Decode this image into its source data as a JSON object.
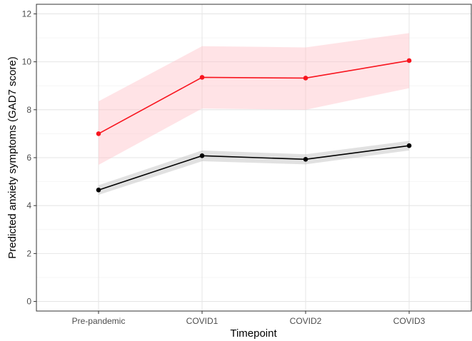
{
  "chart_data": {
    "type": "line",
    "title": "",
    "xlabel": "Timepoint",
    "ylabel": "Predicted anxiety symptoms (GAD7 score)",
    "categories": [
      "Pre-pandemic",
      "COVID1",
      "COVID2",
      "COVID3"
    ],
    "ylim": [
      -0.4,
      12.4
    ],
    "yticks": [
      0,
      2,
      4,
      6,
      8,
      10,
      12
    ],
    "ytick_labels": [
      "0",
      "2",
      "4",
      "6",
      "8",
      "10",
      "12"
    ],
    "grid": true,
    "legend": "none",
    "series": [
      {
        "color": "#f8141e",
        "band_color": "#ffc0c8",
        "values": [
          7.0,
          9.35,
          9.32,
          10.05
        ],
        "lower": [
          5.7,
          8.05,
          8.0,
          8.9
        ],
        "upper": [
          8.35,
          10.65,
          10.6,
          11.2
        ]
      },
      {
        "color": "#000000",
        "band_color": "#bdbdbd",
        "values": [
          4.65,
          6.08,
          5.93,
          6.5
        ],
        "lower": [
          4.45,
          5.85,
          5.72,
          6.3
        ],
        "upper": [
          4.85,
          6.3,
          6.14,
          6.7
        ]
      }
    ]
  }
}
